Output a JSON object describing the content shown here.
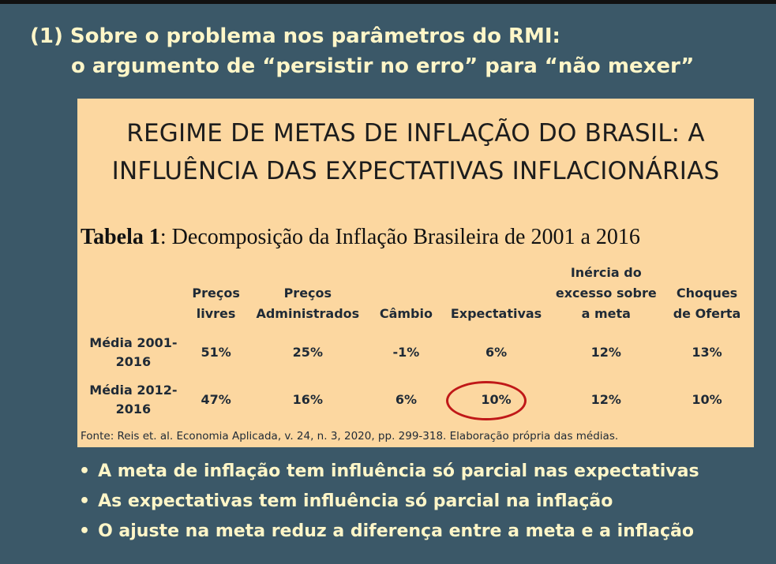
{
  "heading": {
    "line1": "(1) Sobre o problema nos parâmetros do RMI:",
    "line2": "o argumento de “persistir no erro” para “não mexer”"
  },
  "card": {
    "title_line1": "REGIME DE METAS DE INFLAÇÃO DO BRASIL: A",
    "title_line2": "INFLUÊNCIA DAS EXPECTATIVAS INFLACIONÁRIAS",
    "table_label": "Tabela 1",
    "table_caption": ": Decomposição da Inflação Brasileira de 2001 a 2016",
    "columns": [
      "Preços livres",
      "Preços Administrados",
      "Câmbio",
      "Expectativas",
      "Inércia do excesso sobre a meta",
      "Choques de Oferta"
    ],
    "rows": [
      {
        "label": "Média 2001-2016",
        "values": [
          "51%",
          "25%",
          "-1%",
          "6%",
          "12%",
          "13%"
        ]
      },
      {
        "label": "Média 2012-2016",
        "values": [
          "47%",
          "16%",
          "6%",
          "10%",
          "12%",
          "10%"
        ]
      }
    ],
    "highlight_color": "#c01818",
    "source": "Fonte: Reis et. al. Economia Aplicada, v. 24, n. 3, 2020, pp. 299-318. Elaboração própria das médias."
  },
  "bullets": [
    "A meta de inflação tem influência só parcial nas expectativas",
    "As expectativas tem influência só parcial na inflação",
    "O ajuste na meta reduz a diferença entre a meta e a inflação"
  ],
  "colors": {
    "background": "#3b5868",
    "accent_text": "#fff6c8",
    "card": "#fcd7a0"
  }
}
